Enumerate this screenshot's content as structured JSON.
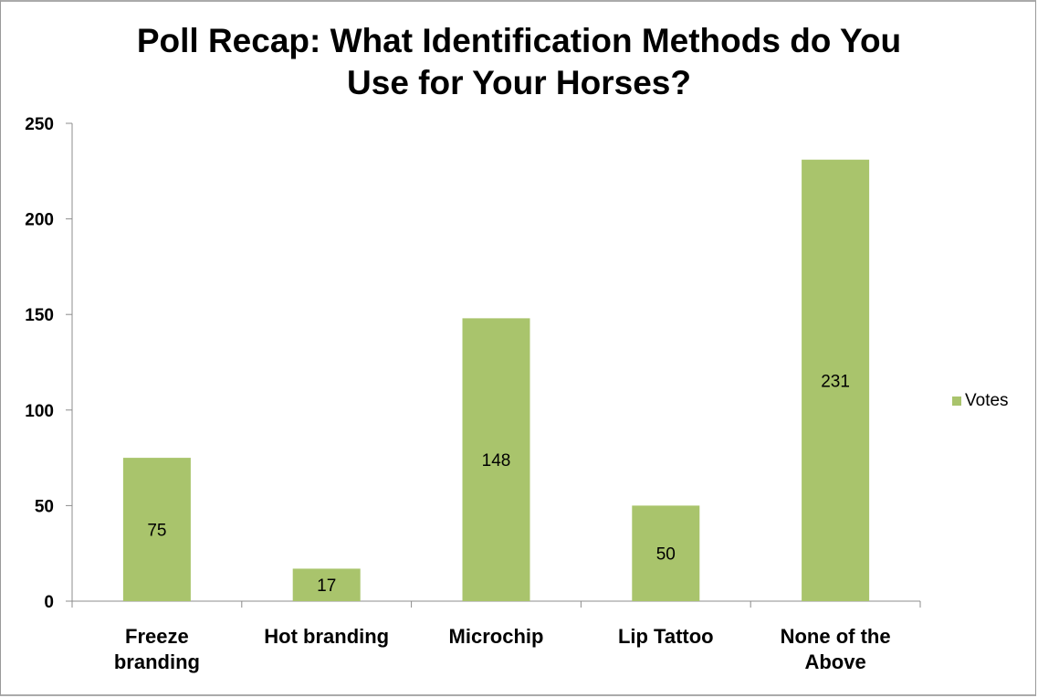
{
  "chart_data": {
    "type": "bar",
    "title": "Poll Recap: What Identification Methods do You Use for Your Horses?",
    "title_lines": [
      "Poll Recap: What Identification Methods do You",
      "Use for Your Horses?"
    ],
    "categories": [
      "Freeze branding",
      "Hot branding",
      "Microchip",
      "Lip Tattoo",
      "None of the Above"
    ],
    "category_lines": [
      [
        "Freeze",
        "branding"
      ],
      [
        "Hot branding"
      ],
      [
        "Microchip"
      ],
      [
        "Lip Tattoo"
      ],
      [
        "None of the",
        "Above"
      ]
    ],
    "series": [
      {
        "name": "Votes",
        "values": [
          75,
          17,
          148,
          50,
          231
        ],
        "color": "#a9c46c"
      }
    ],
    "data_labels": true,
    "xlabel": "",
    "ylabel": "",
    "ylim": [
      0,
      250
    ],
    "yticks": [
      0,
      50,
      100,
      150,
      200,
      250
    ],
    "grid": false,
    "legend_position": "right"
  },
  "legend": {
    "label": "Votes",
    "color": "#a9c46c"
  }
}
